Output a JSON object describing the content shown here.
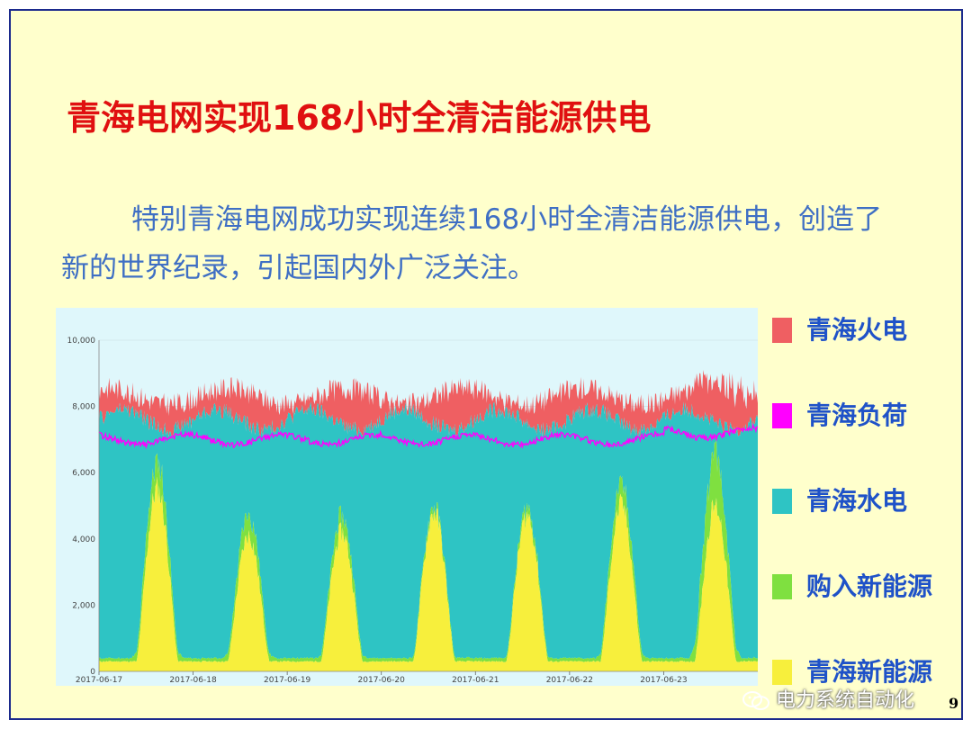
{
  "slide": {
    "title": "青海电网实现168小时全清洁能源供电",
    "paragraph": "特别青海电网成功实现连续168小时全清洁能源供电，创造了新的世界纪录，引起国内外广泛关注。",
    "page_number": "9",
    "watermark": "电力系统自动化"
  },
  "legend": [
    {
      "label": "青海火电",
      "color": "#ef5f62"
    },
    {
      "label": "青海负荷",
      "color": "#ff00ff"
    },
    {
      "label": "青海水电",
      "color": "#2ec4c4"
    },
    {
      "label": "购入新能源",
      "color": "#7fe040"
    },
    {
      "label": "青海新能源",
      "color": "#f7ef3c"
    }
  ],
  "chart_data": {
    "type": "area",
    "x_tick_labels": [
      "2017-06-17",
      "2017-06-18",
      "2017-06-19",
      "2017-06-20",
      "2017-06-21",
      "2017-06-22",
      "2017-06-23"
    ],
    "y_tick_labels": [
      "0",
      "2,000",
      "4,000",
      "6,000",
      "8,000",
      "10,000"
    ],
    "ylim": [
      0,
      10000
    ],
    "xlim_days": [
      0,
      7.0
    ],
    "stacked": true,
    "series": [
      {
        "name": "青海新能源",
        "color": "#f7ef3c",
        "peaks": [
          {
            "center": 0.62,
            "height": 5200
          },
          {
            "center": 1.59,
            "height": 3800
          },
          {
            "center": 2.58,
            "height": 3900
          },
          {
            "center": 3.56,
            "height": 4500
          },
          {
            "center": 4.55,
            "height": 4400
          },
          {
            "center": 5.55,
            "height": 4700
          },
          {
            "center": 6.55,
            "height": 4700
          }
        ],
        "night_baseline": 300
      },
      {
        "name": "购入新能源",
        "color": "#7fe040",
        "peaks": [
          {
            "center": 0.62,
            "height": 700
          },
          {
            "center": 1.59,
            "height": 550
          },
          {
            "center": 2.58,
            "height": 400
          },
          {
            "center": 3.56,
            "height": 100
          },
          {
            "center": 4.55,
            "height": 150
          },
          {
            "center": 5.55,
            "height": 550
          },
          {
            "center": 6.55,
            "height": 1500
          }
        ],
        "night_baseline": 100
      },
      {
        "name": "青海水电",
        "color": "#2ec4c4",
        "top_total_mean": 7600
      },
      {
        "name": "青海火电",
        "color": "#ef5f62",
        "top_total_mean": 8300
      },
      {
        "name": "青海负荷",
        "color": "#ff00ff",
        "type": "line",
        "mean": 7000
      }
    ]
  }
}
